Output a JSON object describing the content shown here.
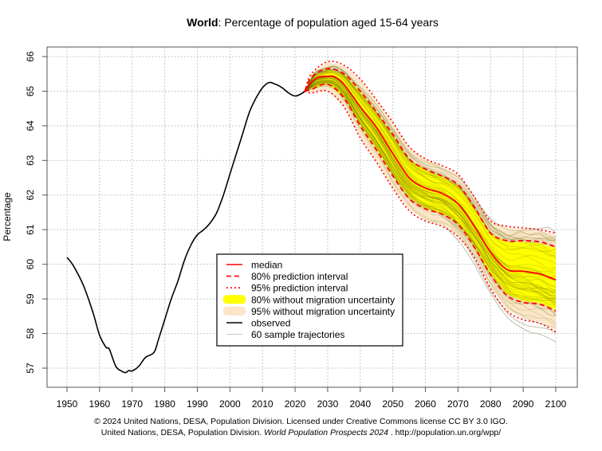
{
  "chart_data": {
    "type": "line",
    "title_bold": "World",
    "title_rest": ": Percentage of population aged 15-64 years",
    "xlabel": "",
    "ylabel": "Percentage",
    "xlim": [
      1944,
      2107
    ],
    "ylim": [
      56.45,
      66.25
    ],
    "grid": true,
    "x_ticks": [
      1950,
      1960,
      1970,
      1980,
      1990,
      2000,
      2010,
      2020,
      2030,
      2040,
      2050,
      2060,
      2070,
      2080,
      2090,
      2100
    ],
    "x_tick_labels": [
      "1950",
      "1960",
      "1970",
      "1980",
      "1990",
      "2000",
      "2010",
      "2020",
      "2030",
      "2040",
      "2050",
      "2060",
      "2070",
      "2080",
      "2090",
      "2100"
    ],
    "y_ticks": [
      57,
      58,
      59,
      60,
      61,
      62,
      63,
      64,
      65,
      66
    ],
    "y_tick_labels": [
      "57",
      "58",
      "59",
      "60",
      "61",
      "62",
      "63",
      "64",
      "65",
      "66"
    ],
    "legend_position": "center-left-bottom",
    "legend": [
      {
        "label": "median",
        "style": "solid-red"
      },
      {
        "label": "80% prediction interval",
        "style": "dashed-red"
      },
      {
        "label": "95% prediction interval",
        "style": "dotted-red"
      },
      {
        "label": "80% without migration uncertainty",
        "style": "yellow-band"
      },
      {
        "label": "95% without migration uncertainty",
        "style": "beige-band"
      },
      {
        "label": "observed",
        "style": "solid-black"
      },
      {
        "label": "60 sample trajectories",
        "style": "thin-grey"
      }
    ],
    "colors": {
      "median": "#ff0000",
      "pi": "#ff0000",
      "band80": "#ffff00",
      "band95": "#fbe6c9",
      "observed": "#000000",
      "trajectories": "#c8c8c8",
      "trajectories_dark": "#6b6b00",
      "grid": "#c8c8c8"
    },
    "series": [
      {
        "name": "observed",
        "x": [
          1950,
          1952,
          1955,
          1958,
          1960,
          1962,
          1963,
          1965,
          1967,
          1968,
          1969,
          1970,
          1972,
          1974,
          1976,
          1977,
          1978,
          1980,
          1982,
          1984,
          1986,
          1988,
          1990,
          1992,
          1994,
          1996,
          1998,
          2000,
          2002,
          2004,
          2006,
          2008,
          2010,
          2012,
          2014,
          2016,
          2018,
          2020,
          2022,
          2023
        ],
        "values": [
          60.2,
          59.95,
          59.4,
          58.6,
          57.95,
          57.6,
          57.55,
          57.05,
          56.9,
          56.87,
          56.93,
          56.92,
          57.05,
          57.3,
          57.4,
          57.5,
          57.8,
          58.4,
          59.0,
          59.5,
          60.1,
          60.55,
          60.85,
          61.0,
          61.2,
          61.5,
          62.0,
          62.6,
          63.2,
          63.8,
          64.4,
          64.8,
          65.1,
          65.25,
          65.2,
          65.1,
          64.95,
          64.86,
          64.93,
          65.0
        ]
      },
      {
        "name": "median",
        "x": [
          2023,
          2025,
          2027,
          2030,
          2032,
          2035,
          2040,
          2045,
          2050,
          2055,
          2060,
          2065,
          2070,
          2075,
          2080,
          2085,
          2090,
          2095,
          2100
        ],
        "values": [
          65.0,
          65.25,
          65.4,
          65.43,
          65.42,
          65.2,
          64.55,
          63.95,
          63.2,
          62.5,
          62.2,
          62.05,
          61.75,
          61.1,
          60.35,
          59.85,
          59.8,
          59.72,
          59.55
        ]
      },
      {
        "name": "80% prediction interval upper",
        "x": [
          2023,
          2025,
          2030,
          2035,
          2040,
          2045,
          2050,
          2055,
          2060,
          2065,
          2070,
          2075,
          2080,
          2085,
          2090,
          2095,
          2100
        ],
        "values": [
          65.0,
          65.4,
          65.65,
          65.5,
          65.0,
          64.4,
          63.75,
          63.05,
          62.75,
          62.55,
          62.3,
          61.65,
          60.9,
          60.68,
          60.68,
          60.65,
          60.5
        ]
      },
      {
        "name": "80% prediction interval lower",
        "x": [
          2023,
          2025,
          2030,
          2035,
          2040,
          2045,
          2050,
          2055,
          2060,
          2065,
          2070,
          2075,
          2080,
          2085,
          2090,
          2095,
          2100
        ],
        "values": [
          65.0,
          65.05,
          65.2,
          64.8,
          64.0,
          63.3,
          62.55,
          61.9,
          61.6,
          61.45,
          61.15,
          60.5,
          59.7,
          59.1,
          58.9,
          58.85,
          58.65
        ]
      },
      {
        "name": "95% prediction interval upper",
        "x": [
          2023,
          2025,
          2030,
          2035,
          2040,
          2045,
          2050,
          2055,
          2060,
          2065,
          2070,
          2075,
          2080,
          2085,
          2090,
          2095,
          2100
        ],
        "values": [
          65.0,
          65.5,
          65.85,
          65.75,
          65.35,
          64.75,
          64.1,
          63.4,
          63.05,
          62.85,
          62.6,
          61.95,
          61.25,
          61.1,
          61.05,
          61.0,
          60.9
        ]
      },
      {
        "name": "95% prediction interval lower",
        "x": [
          2023,
          2025,
          2030,
          2035,
          2040,
          2045,
          2050,
          2055,
          2060,
          2065,
          2070,
          2075,
          2080,
          2085,
          2090,
          2095,
          2100
        ],
        "values": [
          65.0,
          64.95,
          65.0,
          64.55,
          63.65,
          62.95,
          62.2,
          61.55,
          61.25,
          61.1,
          60.8,
          60.2,
          59.3,
          58.65,
          58.4,
          58.3,
          58.05
        ]
      }
    ],
    "sample_trajectory_count": 60
  },
  "footer": {
    "line1": "© 2024 United Nations, DESA, Population Division. Licensed under Creative Commons license CC BY 3.0 IGO.",
    "line2_prefix": "United Nations, DESA, Population Division. ",
    "line2_italic": "World Population Prospects 2024",
    "line2_suffix": " . http://population.un.org/wpp/"
  }
}
